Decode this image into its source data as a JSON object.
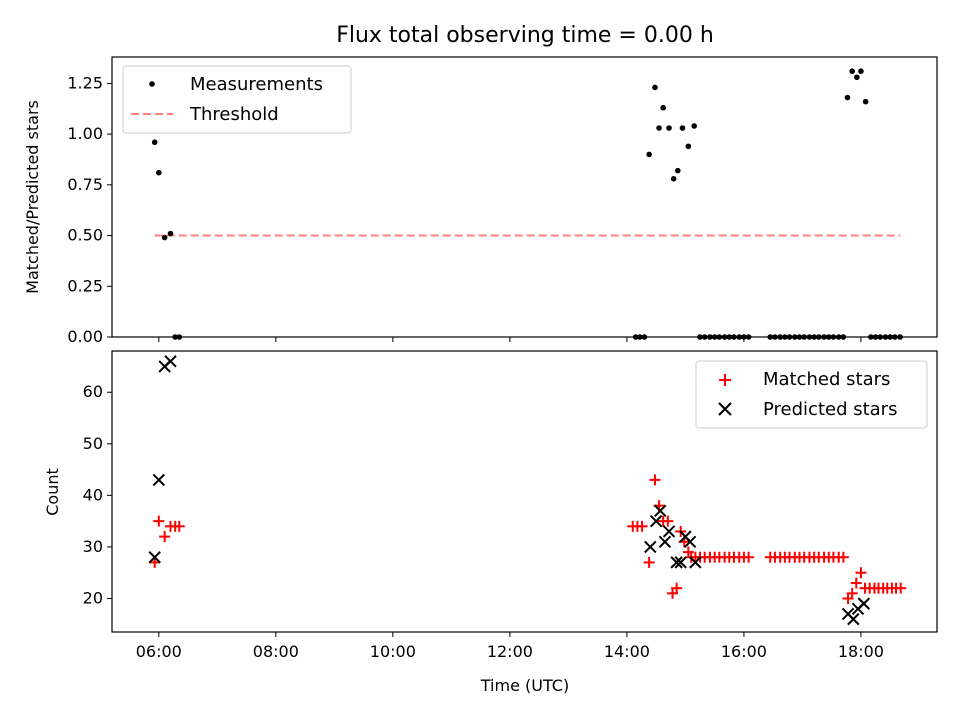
{
  "chart_data": [
    {
      "type": "scatter",
      "title": "Flux total observing time = 0.00 h",
      "xlabel": "",
      "ylabel": "Matched/Predicted stars",
      "xlim": [
        5.2,
        19.3
      ],
      "ylim": [
        0.0,
        1.38
      ],
      "yticks": [
        "0.00",
        "0.25",
        "0.50",
        "0.75",
        "1.00",
        "1.25"
      ],
      "legend_position": "top-left",
      "series": [
        {
          "name": "Measurements",
          "kind": "scatter",
          "marker": "dot",
          "color": "#000000",
          "x": [
            5.93,
            6.0,
            6.1,
            6.2,
            6.28,
            6.35,
            14.15,
            14.22,
            14.3,
            14.38,
            14.48,
            14.55,
            14.62,
            14.72,
            14.8,
            14.87,
            14.95,
            15.05,
            15.15,
            15.25,
            15.33,
            15.42,
            15.5,
            15.58,
            15.67,
            15.75,
            15.83,
            15.92,
            16.0,
            16.08,
            16.45,
            16.53,
            16.62,
            16.7,
            16.78,
            16.87,
            16.95,
            17.03,
            17.12,
            17.2,
            17.28,
            17.37,
            17.45,
            17.53,
            17.62,
            17.7,
            17.77,
            17.85,
            17.93,
            18.0,
            18.08,
            18.17,
            18.25,
            18.33,
            18.42,
            18.5,
            18.58,
            18.67
          ],
          "y": [
            0.96,
            0.81,
            0.49,
            0.51,
            0.0,
            0.0,
            0.0,
            0.0,
            0.0,
            0.9,
            1.23,
            1.03,
            1.13,
            1.03,
            0.78,
            0.82,
            1.03,
            0.94,
            1.04,
            0.0,
            0.0,
            0.0,
            0.0,
            0.0,
            0.0,
            0.0,
            0.0,
            0.0,
            0.0,
            0.0,
            0.0,
            0.0,
            0.0,
            0.0,
            0.0,
            0.0,
            0.0,
            0.0,
            0.0,
            0.0,
            0.0,
            0.0,
            0.0,
            0.0,
            0.0,
            0.0,
            1.18,
            1.31,
            1.28,
            1.31,
            1.16,
            0.0,
            0.0,
            0.0,
            0.0,
            0.0,
            0.0,
            0.0
          ]
        },
        {
          "name": "Threshold",
          "kind": "line",
          "style": "dashed",
          "color": "#ff7f7f",
          "x": [
            5.93,
            18.67
          ],
          "y": [
            0.5,
            0.5
          ]
        }
      ]
    },
    {
      "type": "scatter",
      "title": "",
      "xlabel": "Time (UTC)",
      "ylabel": "Count",
      "xlim": [
        5.2,
        19.3
      ],
      "ylim": [
        13.5,
        68.0
      ],
      "yticks": [
        "20",
        "30",
        "40",
        "50",
        "60"
      ],
      "xticks": [
        6,
        8,
        10,
        12,
        14,
        16,
        18
      ],
      "xticklabels": [
        "06:00",
        "08:00",
        "10:00",
        "12:00",
        "14:00",
        "16:00",
        "18:00"
      ],
      "legend_position": "top-right",
      "series": [
        {
          "name": "Matched stars",
          "kind": "scatter",
          "marker": "plus",
          "color": "#ff0000",
          "x": [
            5.93,
            6.0,
            6.1,
            6.2,
            6.28,
            6.35,
            14.1,
            14.18,
            14.26,
            14.38,
            14.48,
            14.55,
            14.62,
            14.7,
            14.78,
            14.85,
            14.92,
            14.98,
            15.05,
            15.1,
            15.17,
            15.25,
            15.33,
            15.42,
            15.5,
            15.58,
            15.67,
            15.75,
            15.83,
            15.92,
            16.0,
            16.08,
            16.45,
            16.53,
            16.62,
            16.7,
            16.78,
            16.87,
            16.95,
            17.03,
            17.12,
            17.2,
            17.28,
            17.37,
            17.45,
            17.53,
            17.62,
            17.7,
            17.78,
            17.85,
            17.92,
            18.0,
            18.07,
            18.15,
            18.23,
            18.3,
            18.38,
            18.45,
            18.53,
            18.6,
            18.68
          ],
          "y": [
            27,
            35,
            32,
            34,
            34,
            34,
            34,
            34,
            34,
            27,
            43,
            38,
            35,
            35,
            21,
            22,
            33,
            31,
            29,
            28,
            28,
            28,
            28,
            28,
            28,
            28,
            28,
            28,
            28,
            28,
            28,
            28,
            28,
            28,
            28,
            28,
            28,
            28,
            28,
            28,
            28,
            28,
            28,
            28,
            28,
            28,
            28,
            28,
            20,
            21,
            23,
            25,
            22,
            22,
            22,
            22,
            22,
            22,
            22,
            22,
            22
          ]
        },
        {
          "name": "Predicted stars",
          "kind": "scatter",
          "marker": "x",
          "color": "#000000",
          "x": [
            5.93,
            6.0,
            6.1,
            6.2,
            14.4,
            14.5,
            14.57,
            14.65,
            14.72,
            14.85,
            14.92,
            15.0,
            15.08,
            15.17,
            17.78,
            17.87,
            17.95,
            18.05
          ],
          "y": [
            28,
            43,
            65,
            66,
            30,
            35,
            37,
            31,
            33,
            27,
            27,
            32,
            31,
            27,
            17,
            16,
            18,
            19
          ]
        }
      ]
    }
  ]
}
